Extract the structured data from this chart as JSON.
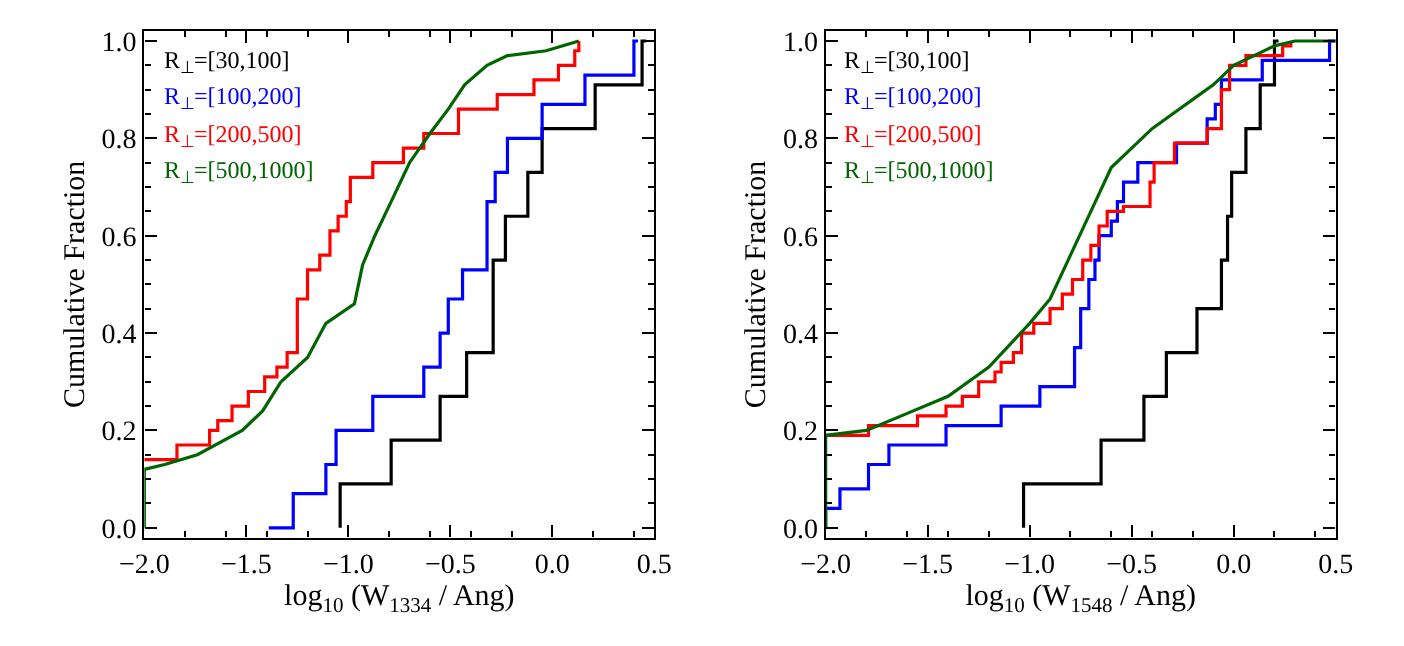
{
  "chart_data": [
    {
      "type": "step",
      "xlabel": "log$_{10}$ (W$_{1334}$ / Ang)",
      "ylabel": "Cumulative Fraction",
      "xlim": [
        -2.0,
        0.5
      ],
      "xticks": [
        {
          "value": -2.0,
          "label": "−2.0"
        },
        {
          "value": -1.5,
          "label": "−1.5"
        },
        {
          "value": -1.0,
          "label": "−1.0"
        },
        {
          "value": -0.5,
          "label": "−0.5"
        },
        {
          "value": 0.0,
          "label": "0.0"
        },
        {
          "value": 0.5,
          "label": "0.5"
        }
      ],
      "ylim": [
        -0.02,
        1.02
      ],
      "yticks": [
        {
          "value": 0,
          "label": "0.0"
        },
        {
          "value": 0.2,
          "label": "0.2"
        },
        {
          "value": 0.4,
          "label": "0.4"
        },
        {
          "value": 0.6,
          "label": "0.6"
        },
        {
          "value": 0.8,
          "label": "0.8"
        },
        {
          "value": 1.0,
          "label": "1.0"
        }
      ],
      "legend": "top left",
      "series": [
        {
          "name": "R$_{⊥}$=[30,100]",
          "color": "#000000",
          "x": [
            -1.04,
            -1.04,
            -0.79,
            -0.55,
            -0.42,
            -0.29,
            -0.23,
            -0.12,
            -0.05,
            0.21,
            0.44,
            0.46
          ],
          "values": [
            0,
            0.09,
            0.18,
            0.27,
            0.36,
            0.55,
            0.64,
            0.73,
            0.82,
            0.91,
            1.0,
            1.0
          ]
        },
        {
          "name": "R$_{⊥}$=[100,200]",
          "color": "#0000ff",
          "x": [
            -1.39,
            -1.27,
            -1.11,
            -1.06,
            -0.88,
            -0.63,
            -0.55,
            -0.51,
            -0.44,
            -0.32,
            -0.28,
            -0.22,
            -0.05,
            0.16,
            0.4,
            0.42
          ],
          "values": [
            0,
            0.07,
            0.13,
            0.2,
            0.27,
            0.33,
            0.4,
            0.47,
            0.53,
            0.67,
            0.73,
            0.8,
            0.87,
            0.93,
            1.0,
            1.0
          ]
        },
        {
          "name": "R$_{⊥}$=[200,500]",
          "color": "#ff0000",
          "x": [
            -2.0,
            -1.84,
            -1.68,
            -1.64,
            -1.57,
            -1.49,
            -1.41,
            -1.35,
            -1.3,
            -1.25,
            -1.2,
            -1.14,
            -1.09,
            -1.05,
            -1.01,
            -0.99,
            -0.88,
            -0.73,
            -0.63,
            -0.46,
            -0.27,
            -0.09,
            0.03,
            0.11,
            0.13
          ],
          "values": [
            0.14,
            0.17,
            0.2,
            0.22,
            0.25,
            0.28,
            0.31,
            0.33,
            0.36,
            0.47,
            0.53,
            0.56,
            0.61,
            0.64,
            0.67,
            0.72,
            0.75,
            0.78,
            0.81,
            0.86,
            0.89,
            0.92,
            0.95,
            0.98,
            1.0
          ]
        },
        {
          "name": "R$_{⊥}$=[500,1000]",
          "color": "#006400",
          "type": "line",
          "x": [
            -2.0,
            -2.0,
            -1.9,
            -1.74,
            -1.52,
            -1.42,
            -1.33,
            -1.2,
            -1.11,
            -0.97,
            -0.93,
            -0.87,
            -0.79,
            -0.7,
            -0.6,
            -0.51,
            -0.43,
            -0.32,
            -0.22,
            -0.03,
            0.13
          ],
          "values": [
            0,
            0.12,
            0.13,
            0.15,
            0.2,
            0.24,
            0.3,
            0.35,
            0.42,
            0.46,
            0.54,
            0.6,
            0.67,
            0.75,
            0.81,
            0.86,
            0.91,
            0.95,
            0.97,
            0.98,
            1.0
          ]
        }
      ]
    },
    {
      "type": "step",
      "xlabel": "log$_{10}$ (W$_{1548}$ / Ang)",
      "ylabel": "Cumulative Fraction",
      "xlim": [
        -2.0,
        0.5
      ],
      "xticks": [
        {
          "value": -2.0,
          "label": "−2.0"
        },
        {
          "value": -1.5,
          "label": "−1.5"
        },
        {
          "value": -1.0,
          "label": "−1.0"
        },
        {
          "value": -0.5,
          "label": "−0.5"
        },
        {
          "value": 0.0,
          "label": "0.0"
        },
        {
          "value": 0.5,
          "label": "0.5"
        }
      ],
      "ylim": [
        -0.02,
        1.02
      ],
      "yticks": [
        {
          "value": 0,
          "label": "0.0"
        },
        {
          "value": 0.2,
          "label": "0.2"
        },
        {
          "value": 0.4,
          "label": "0.4"
        },
        {
          "value": 0.6,
          "label": "0.6"
        },
        {
          "value": 0.8,
          "label": "0.8"
        },
        {
          "value": 1.0,
          "label": "1.0"
        }
      ],
      "legend": "top left",
      "series": [
        {
          "name": "R$_{⊥}$=[30,100]",
          "color": "#000000",
          "x": [
            -1.03,
            -1.03,
            -0.65,
            -0.44,
            -0.33,
            -0.18,
            -0.06,
            -0.03,
            -0.01,
            0.06,
            0.13,
            0.2,
            0.22
          ],
          "values": [
            0,
            0.09,
            0.18,
            0.27,
            0.36,
            0.45,
            0.55,
            0.64,
            0.73,
            0.82,
            0.91,
            1.0,
            1.0
          ]
        },
        {
          "name": "R$_{⊥}$=[100,200]",
          "color": "#0000ff",
          "x": [
            -2.0,
            -2.0,
            -1.93,
            -1.79,
            -1.69,
            -1.41,
            -1.14,
            -0.95,
            -0.78,
            -0.75,
            -0.71,
            -0.68,
            -0.66,
            -0.6,
            -0.57,
            -0.54,
            -0.47,
            -0.28,
            -0.13,
            -0.09,
            -0.06,
            0.14,
            0.47,
            0.5
          ],
          "values": [
            0,
            0.04,
            0.08,
            0.13,
            0.17,
            0.21,
            0.25,
            0.29,
            0.37,
            0.45,
            0.51,
            0.55,
            0.6,
            0.63,
            0.67,
            0.71,
            0.75,
            0.79,
            0.84,
            0.87,
            0.92,
            0.96,
            1.0,
            1.0
          ]
        },
        {
          "name": "R$_{⊥}$=[200,500]",
          "color": "#ff0000",
          "x": [
            -2.0,
            -1.79,
            -1.55,
            -1.41,
            -1.33,
            -1.25,
            -1.17,
            -1.14,
            -1.08,
            -1.04,
            -0.98,
            -0.9,
            -0.84,
            -0.79,
            -0.74,
            -0.7,
            -0.66,
            -0.62,
            -0.54,
            -0.41,
            -0.39,
            -0.29,
            -0.13,
            -0.06,
            -0.02,
            0.06,
            0.24,
            0.28
          ],
          "values": [
            0.19,
            0.21,
            0.23,
            0.25,
            0.27,
            0.3,
            0.32,
            0.34,
            0.36,
            0.4,
            0.42,
            0.45,
            0.48,
            0.51,
            0.55,
            0.58,
            0.62,
            0.65,
            0.66,
            0.71,
            0.75,
            0.79,
            0.82,
            0.9,
            0.95,
            0.97,
            0.99,
            1.0
          ]
        },
        {
          "name": "R$_{⊥}$=[500,1000]",
          "color": "#006400",
          "type": "line",
          "x": [
            -2.0,
            -2.0,
            -1.8,
            -1.6,
            -1.4,
            -1.2,
            -1.0,
            -0.9,
            -0.8,
            -0.7,
            -0.6,
            -0.5,
            -0.4,
            -0.3,
            -0.2,
            -0.1,
            0.0,
            0.1,
            0.2,
            0.3,
            0.5
          ],
          "values": [
            0,
            0.19,
            0.2,
            0.235,
            0.27,
            0.33,
            0.42,
            0.47,
            0.56,
            0.65,
            0.74,
            0.78,
            0.82,
            0.85,
            0.88,
            0.91,
            0.95,
            0.97,
            0.99,
            1.0,
            1.0
          ]
        }
      ]
    }
  ]
}
